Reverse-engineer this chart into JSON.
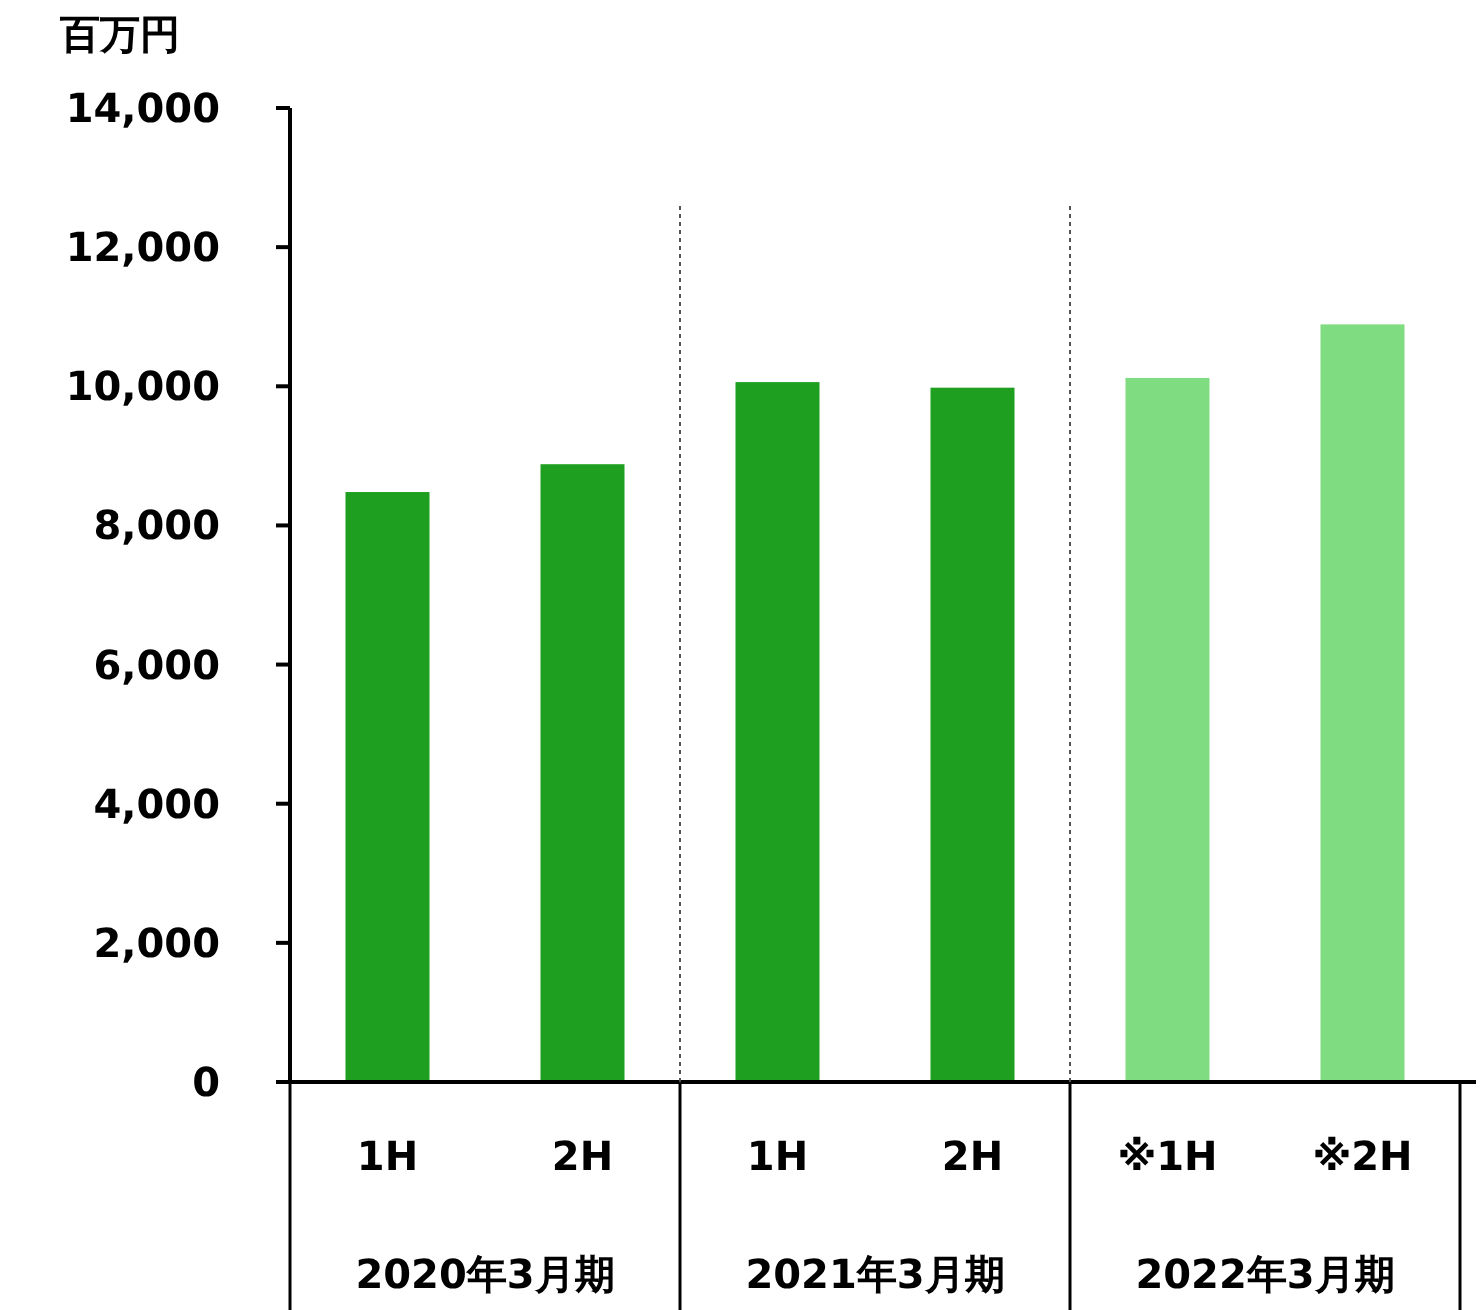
{
  "chart_data": {
    "type": "bar",
    "ylabel": "百万円",
    "categories": [
      "1H",
      "2H",
      "1H",
      "2H",
      "※1H",
      "※2H"
    ],
    "values": [
      8480,
      8880,
      10060,
      9980,
      10120,
      10890
    ],
    "colors": [
      "#1f9f1f",
      "#1f9f1f",
      "#1f9f1f",
      "#1f9f1f",
      "#80dc80",
      "#80dc80"
    ],
    "ylim": [
      0,
      14000
    ],
    "yticks": [
      {
        "value": 0,
        "label": "0"
      },
      {
        "value": 2000,
        "label": "2,000"
      },
      {
        "value": 4000,
        "label": "4,000"
      },
      {
        "value": 6000,
        "label": "6,000"
      },
      {
        "value": 8000,
        "label": "8,000"
      },
      {
        "value": 10000,
        "label": "10,000"
      },
      {
        "value": 12000,
        "label": "12,000"
      },
      {
        "value": 14000,
        "label": "14,000"
      }
    ],
    "annotations": [
      "2020年3月期",
      "2021年3月期",
      "2022年3月期"
    ],
    "grid": false
  }
}
